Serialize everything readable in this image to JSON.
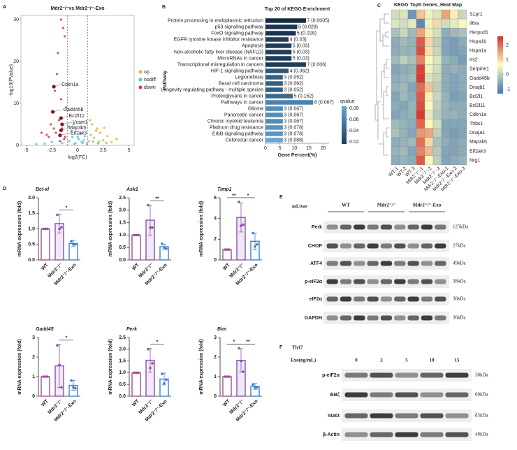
{
  "panel_labels": [
    "A",
    "B",
    "C",
    "D",
    "E",
    "F"
  ],
  "chart_data": [
    {
      "type": "scatter",
      "title": "Mdr2⁻/⁻vs Mdr2⁻/⁻-Exo",
      "x_label": "log2(FC)",
      "y_label": "-log10(PValue)",
      "xlim": [
        -5.5,
        5.5
      ],
      "ylim": [
        0,
        31
      ],
      "xticks": [
        -5,
        -2.5,
        0,
        2.5,
        5
      ],
      "yticks": [
        0,
        10,
        20,
        30
      ],
      "thresholds": [
        -1,
        1
      ],
      "legend": "right",
      "series": [
        {
          "name": "up",
          "color": "#f0b030",
          "x": [
            1.1,
            1.3,
            1.6,
            1.9,
            2.2,
            2.5,
            2.9,
            3.3,
            1.4,
            1.8,
            2.1,
            3.8,
            1.2,
            2.6
          ],
          "y": [
            1,
            2.5,
            1.8,
            4,
            3,
            1.2,
            2.2,
            0.8,
            5,
            3.5,
            0.9,
            1.5,
            6,
            4.2
          ]
        },
        {
          "name": "nodiff",
          "color": "#5bc0de",
          "x": [
            -0.8,
            -0.5,
            -0.2,
            0.1,
            0.4,
            0.7,
            0.9,
            -0.6,
            0.3,
            -0.3,
            0.6,
            -0.9,
            0.0,
            0.5,
            -0.4,
            -1.5,
            -2.5,
            -3.2,
            2.0,
            2.8,
            1.5,
            -4.0
          ],
          "y": [
            1,
            2,
            0.5,
            1.5,
            0.8,
            2.2,
            0.4,
            3.5,
            2.8,
            0.3,
            1.2,
            4.5,
            2,
            0.6,
            5,
            0.5,
            0.8,
            0.4,
            0.5,
            0.6,
            0.9,
            0.3
          ]
        },
        {
          "name": "down",
          "color": "#e0334b",
          "x": [
            -1.2,
            -1.5,
            -1.8,
            -2.1,
            -2.4,
            -1.3,
            -1.6,
            -2.0,
            -2.6,
            -3.0,
            -1.4,
            -1.9,
            -2.2,
            -1.1,
            -3.5,
            -1.7,
            -2.8,
            -1.25,
            -1.6,
            -2.3
          ],
          "y": [
            2,
            4,
            6,
            3,
            8,
            1.5,
            11,
            17,
            5,
            2.5,
            28,
            22,
            13,
            9,
            3,
            1,
            2,
            26,
            30,
            4
          ]
        }
      ],
      "annotations": [
        {
          "label": "Cdkn1a",
          "x": -2.3,
          "y": 14
        },
        {
          "label": "Gadd45b",
          "x": -2.4,
          "y": 8
        },
        {
          "label": "Bcl2l11",
          "x": -1.6,
          "y": 6.5
        },
        {
          "label": "Vcam1",
          "x": -1.5,
          "y": 5
        },
        {
          "label": "Map3k5",
          "x": -1.6,
          "y": 3.6
        },
        {
          "label": "Eif2ak3",
          "x": -1.7,
          "y": 2.4
        }
      ]
    },
    {
      "type": "bar",
      "orientation": "horizontal",
      "title": "Top 20 of KEGG Enrichment",
      "x_label": "Gene Percent(%)",
      "y_label": "Pathway",
      "categories": [
        "Protein processing in endoplasmic reticulum",
        "p53 signaling pathway",
        "FoxO signaling pathway",
        "EGFR tyrosine kinase inhibitor resistance",
        "Apoptosis",
        "Non-alcoholic fatty liver disease (NAFLD)",
        "MicroRNAs in cancer",
        "Transcriptional misregulation in cancers",
        "HIF-1 signaling pathway",
        "Legionellosis",
        "Basal cell carcinoma",
        "Longevity regulating pathway - multiple species",
        "Proteoglycans in cancer",
        "Pathways in cancer",
        "Glioma",
        "Pancreatic cancer",
        "Chronic myeloid leukemia",
        "Platinum drug resistance",
        "ErbB signaling pathway",
        "Colorectal cancer"
      ],
      "values": [
        14,
        11,
        10.5,
        8,
        9,
        9,
        9,
        14,
        8,
        6,
        6,
        6,
        9.5,
        16.5,
        6,
        6,
        6,
        6,
        6,
        6
      ],
      "bar_labels": [
        "7 (0.0005)",
        "5 (0.028)",
        "5 (0.028)",
        "4 (0.03)",
        "5 (0.03)",
        "5 (0.03)",
        "5 (0.03)",
        "7 (0.006)",
        "4 (0.062)",
        "3 (0.052)",
        "3 (0.062)",
        "3 (0.052)",
        "5 (0.152)",
        "8 (0.067)",
        "3 (0.067)",
        "3 (0.067)",
        "3 (0.067)",
        "3 (0.078)",
        "3 (0.078)",
        "3 (0.088)"
      ],
      "qvalues": [
        0.005,
        0.015,
        0.015,
        0.02,
        0.02,
        0.02,
        0.02,
        0.02,
        0.035,
        0.04,
        0.04,
        0.04,
        0.045,
        0.06,
        0.065,
        0.065,
        0.065,
        0.07,
        0.07,
        0.08
      ],
      "xlim": [
        0,
        22
      ],
      "xticks": [
        0,
        5,
        10,
        15,
        20
      ],
      "legend_title": "qvalue",
      "colors": [
        "#132b43",
        "#6fb8ec"
      ],
      "clim": [
        0.01,
        0.09
      ],
      "cticks": [
        0.08,
        0.06,
        0.04,
        0.02
      ]
    },
    {
      "type": "heatmap",
      "title": "KEGG Top5 Genes_Heat Map",
      "columns": [
        "WT-1",
        "WT-2",
        "WT-3",
        "Mdr2⁻/⁻-1",
        "Mdr2⁻/⁻-2",
        "Mdr2⁻/⁻-3",
        "Mdr2⁻/⁻-Exo-1",
        "Mdr2⁻/⁻-Exo-2",
        "Mdr2⁻/⁻-Exo-3"
      ],
      "rows": [
        "S1pr1",
        "Il6ra",
        "Herpud1",
        "Hspa1b",
        "Hspa1a",
        "Irs2",
        "Serpine1",
        "Gadd45b",
        "Dnajb1",
        "Bcl2l1",
        "Bcl2l11",
        "Cdkn1a",
        "Thbs1",
        "Dnaja1",
        "Map3k5",
        "Eif2ak3",
        "Nrg1"
      ],
      "values": [
        [
          0.2,
          0.3,
          -0.8,
          1.2,
          0.5,
          0.3,
          1.5,
          0.8,
          0.1
        ],
        [
          0.3,
          0.2,
          0.4,
          -1.0,
          0.5,
          1.0,
          0.2,
          0.4,
          0.6
        ],
        [
          -0.2,
          0.1,
          -0.3,
          1.5,
          0.8,
          0.2,
          -0.5,
          -0.3,
          -0.2
        ],
        [
          -0.5,
          -0.3,
          -0.4,
          2.2,
          1.0,
          0.0,
          -0.6,
          -0.7,
          -0.5
        ],
        [
          -0.5,
          -0.4,
          -0.4,
          2.3,
          0.9,
          0.1,
          -0.6,
          -0.7,
          -0.6
        ],
        [
          -0.3,
          0.0,
          -0.2,
          1.8,
          0.6,
          0.3,
          -0.4,
          -0.5,
          -0.7
        ],
        [
          -0.6,
          -0.5,
          -0.4,
          2.4,
          0.5,
          0.2,
          -0.5,
          -0.4,
          -0.5
        ],
        [
          -0.5,
          -0.4,
          -0.3,
          2.5,
          0.3,
          0.1,
          -0.5,
          -0.6,
          -0.5
        ],
        [
          -0.4,
          -0.3,
          -0.6,
          2.0,
          1.2,
          0.0,
          -0.5,
          -0.6,
          -0.5
        ],
        [
          -0.6,
          -0.3,
          -0.5,
          2.2,
          0.8,
          0.1,
          -0.4,
          -0.7,
          -0.6
        ],
        [
          -0.5,
          -0.6,
          -0.4,
          2.3,
          0.6,
          0.0,
          -0.4,
          -0.5,
          -0.5
        ],
        [
          -0.6,
          -0.5,
          -0.4,
          2.5,
          0.4,
          -0.1,
          -0.4,
          -0.4,
          -0.5
        ],
        [
          -0.3,
          -0.4,
          -0.5,
          2.1,
          0.7,
          0.2,
          -0.6,
          -0.6,
          -0.6
        ],
        [
          -0.2,
          -0.4,
          -0.6,
          1.6,
          1.5,
          0.0,
          -0.6,
          -0.7,
          -0.6
        ],
        [
          -0.5,
          -0.4,
          -0.3,
          2.0,
          1.0,
          -0.2,
          -0.5,
          -0.6,
          -0.5
        ],
        [
          -0.4,
          -0.3,
          -0.6,
          1.8,
          1.3,
          -0.1,
          -0.6,
          -0.6,
          -0.5
        ],
        [
          -0.5,
          -0.4,
          -0.5,
          2.2,
          0.7,
          0.0,
          -0.6,
          -0.5,
          -0.4
        ]
      ],
      "colors": [
        "#3f74b5",
        "#fdfdc0",
        "#d3302a"
      ],
      "clim": [
        -1.3,
        2.6
      ],
      "cticks": [
        2,
        1,
        0,
        -1
      ]
    },
    {
      "type": "bar",
      "title": "Bcl-xl",
      "y_label": "mRNA expression (fold)",
      "categories": [
        "WT",
        "Mdr2⁻/⁻",
        "Mdr2⁻/⁻-Exo"
      ],
      "values": [
        1.0,
        1.17,
        0.53
      ],
      "errors": [
        0,
        0.3,
        0.1
      ],
      "points": [
        [
          1,
          1,
          1
        ],
        [
          1.45,
          1.0,
          1.05
        ],
        [
          0.6,
          0.5,
          0.5
        ]
      ],
      "colors": [
        "#a34b9c",
        "#8c4fb0",
        "#3d7fd6"
      ],
      "ylim": [
        0,
        2
      ],
      "yticks": [
        {
          "value": 0,
          "label": "0.0"
        },
        0.5,
        {
          "value": 1,
          "label": "1.0"
        },
        1.5,
        {
          "value": 2,
          "label": "2.0"
        }
      ],
      "significance": [
        {
          "pair": [
            "Mdr2⁻/⁻",
            "Mdr2⁻/⁻-Exo"
          ],
          "label": "*"
        }
      ]
    },
    {
      "type": "bar",
      "title": "Ask1",
      "y_label": "mRNA expression (fold)",
      "categories": [
        "WT",
        "Mdr2⁻/⁻",
        "Mdr2⁻/⁻-Exo"
      ],
      "values": [
        1.0,
        1.6,
        0.53
      ],
      "errors": [
        0,
        0.6,
        0.1
      ],
      "points": [
        [
          1,
          1,
          1
        ],
        [
          2.2,
          1.3,
          1.3
        ],
        [
          0.65,
          0.5,
          0.45
        ]
      ],
      "colors": [
        "#a34b9c",
        "#8c4fb0",
        "#3d7fd6"
      ],
      "ylim": [
        0,
        2.5
      ],
      "yticks": [
        {
          "value": 0,
          "label": "0.0"
        },
        0.5,
        {
          "value": 1,
          "label": "1.0"
        },
        1.5,
        {
          "value": 2,
          "label": "2.0"
        },
        2.5
      ],
      "significance": [
        {
          "pair": [
            "Mdr2⁻/⁻",
            "Mdr2⁻/⁻-Exo"
          ],
          "label": "**"
        }
      ]
    },
    {
      "type": "bar",
      "title": "Timp1",
      "y_label": "mRNA expression (fold)",
      "categories": [
        "WT",
        "Mdr2⁻/⁻",
        "Mdr2⁻/⁻-Exo"
      ],
      "values": [
        1.0,
        4.1,
        1.8
      ],
      "errors": [
        0,
        1.4,
        0.8
      ],
      "points": [
        [
          1,
          1,
          1
        ],
        [
          5.6,
          3.3,
          3.4
        ],
        [
          2.6,
          1.3,
          1.5
        ]
      ],
      "colors": [
        "#a34b9c",
        "#8c4fb0",
        "#3d7fd6"
      ],
      "ylim": [
        0,
        6
      ],
      "yticks": [
        0,
        2,
        4,
        6
      ],
      "significance": [
        {
          "pair": [
            "WT",
            "Mdr2⁻/⁻"
          ],
          "label": "**"
        },
        {
          "pair": [
            "Mdr2⁻/⁻",
            "Mdr2⁻/⁻-Exo"
          ],
          "label": "*"
        }
      ]
    },
    {
      "type": "bar",
      "title": "Gadd45",
      "y_label": "mRNA expression (fold)",
      "categories": [
        "WT",
        "Mdr2⁻/⁻",
        "Mdr2⁻/⁻-Exo"
      ],
      "values": [
        1.0,
        1.55,
        0.55
      ],
      "errors": [
        0,
        1.1,
        0.25
      ],
      "points": [
        [
          1,
          1,
          1
        ],
        [
          2.6,
          1.6,
          0.45
        ],
        [
          0.8,
          0.45,
          0.4
        ]
      ],
      "colors": [
        "#a34b9c",
        "#8c4fb0",
        "#3d7fd6"
      ],
      "ylim": [
        0,
        3
      ],
      "yticks": [
        0,
        1,
        2,
        3
      ],
      "significance": [
        {
          "pair": [
            "Mdr2⁻/⁻",
            "Mdr2⁻/⁻-Exo"
          ],
          "label": "*"
        }
      ]
    },
    {
      "type": "bar",
      "title": "Perk",
      "y_label": "mRNA expression (fold)",
      "categories": [
        "WT",
        "Mdr2⁻/⁻",
        "Mdr2⁻/⁻-Exo"
      ],
      "values": [
        1.0,
        1.53,
        0.73
      ],
      "errors": [
        0,
        0.5,
        0.25
      ],
      "points": [
        [
          1,
          1,
          1
        ],
        [
          2.0,
          1.2,
          1.4
        ],
        [
          0.95,
          0.55,
          0.7
        ]
      ],
      "colors": [
        "#a34b9c",
        "#8c4fb0",
        "#3d7fd6"
      ],
      "ylim": [
        0,
        2.5
      ],
      "yticks": [
        {
          "value": 0,
          "label": "0.0"
        },
        0.5,
        {
          "value": 1,
          "label": "1.0"
        },
        1.5,
        {
          "value": 2,
          "label": "2.0"
        },
        2.5
      ],
      "significance": [
        {
          "pair": [
            "Mdr2⁻/⁻",
            "Mdr2⁻/⁻-Exo"
          ],
          "label": "*"
        }
      ]
    },
    {
      "type": "bar",
      "title": "Bim",
      "y_label": "mRNA expression (fold)",
      "categories": [
        "WT",
        "Mdr2⁻/⁻",
        "Mdr2⁻/⁻-Exo"
      ],
      "values": [
        1.0,
        1.83,
        0.5
      ],
      "errors": [
        0,
        0.6,
        0.15
      ],
      "points": [
        [
          1,
          1,
          1
        ],
        [
          2.45,
          1.8,
          1.25
        ],
        [
          0.6,
          0.45,
          0.45
        ]
      ],
      "colors": [
        "#a34b9c",
        "#8c4fb0",
        "#3d7fd6"
      ],
      "ylim": [
        0,
        3
      ],
      "yticks": [
        0,
        1,
        2,
        3
      ],
      "significance": [
        {
          "pair": [
            "WT",
            "Mdr2⁻/⁻"
          ],
          "label": "*"
        },
        {
          "pair": [
            "Mdr2⁻/⁻",
            "Mdr2⁻/⁻-Exo"
          ],
          "label": "**"
        }
      ]
    }
  ],
  "blots": [
    {
      "sample": "mLiver",
      "groups": [
        "WT",
        "Mdr2⁻/⁻",
        "Mdr2⁻/⁻-Exo"
      ],
      "rows": [
        {
          "protein": "Perk",
          "size": "125kDa"
        },
        {
          "protein": "CHOP",
          "size": "27kDa"
        },
        {
          "protein": "ATF4",
          "size": "49kDa"
        },
        {
          "protein": "p-eIF2α",
          "size": "38kDa"
        },
        {
          "protein": "eIF2α",
          "size": "38kDa"
        },
        {
          "protein": "GAPDH",
          "size": "36kDa"
        }
      ]
    },
    {
      "sample": "Th17",
      "dose_label": "Exo(ng/mL)",
      "doses": [
        "0",
        "2",
        "5",
        "10",
        "15"
      ],
      "rows": [
        {
          "protein": "p-eIF2α",
          "size": "38kDa"
        },
        {
          "protein": "IkBζ",
          "size": "60kDa"
        },
        {
          "protein": "Stat3",
          "size": "85kDa"
        },
        {
          "protein": "β-Actin",
          "size": "48kDa"
        }
      ]
    }
  ]
}
